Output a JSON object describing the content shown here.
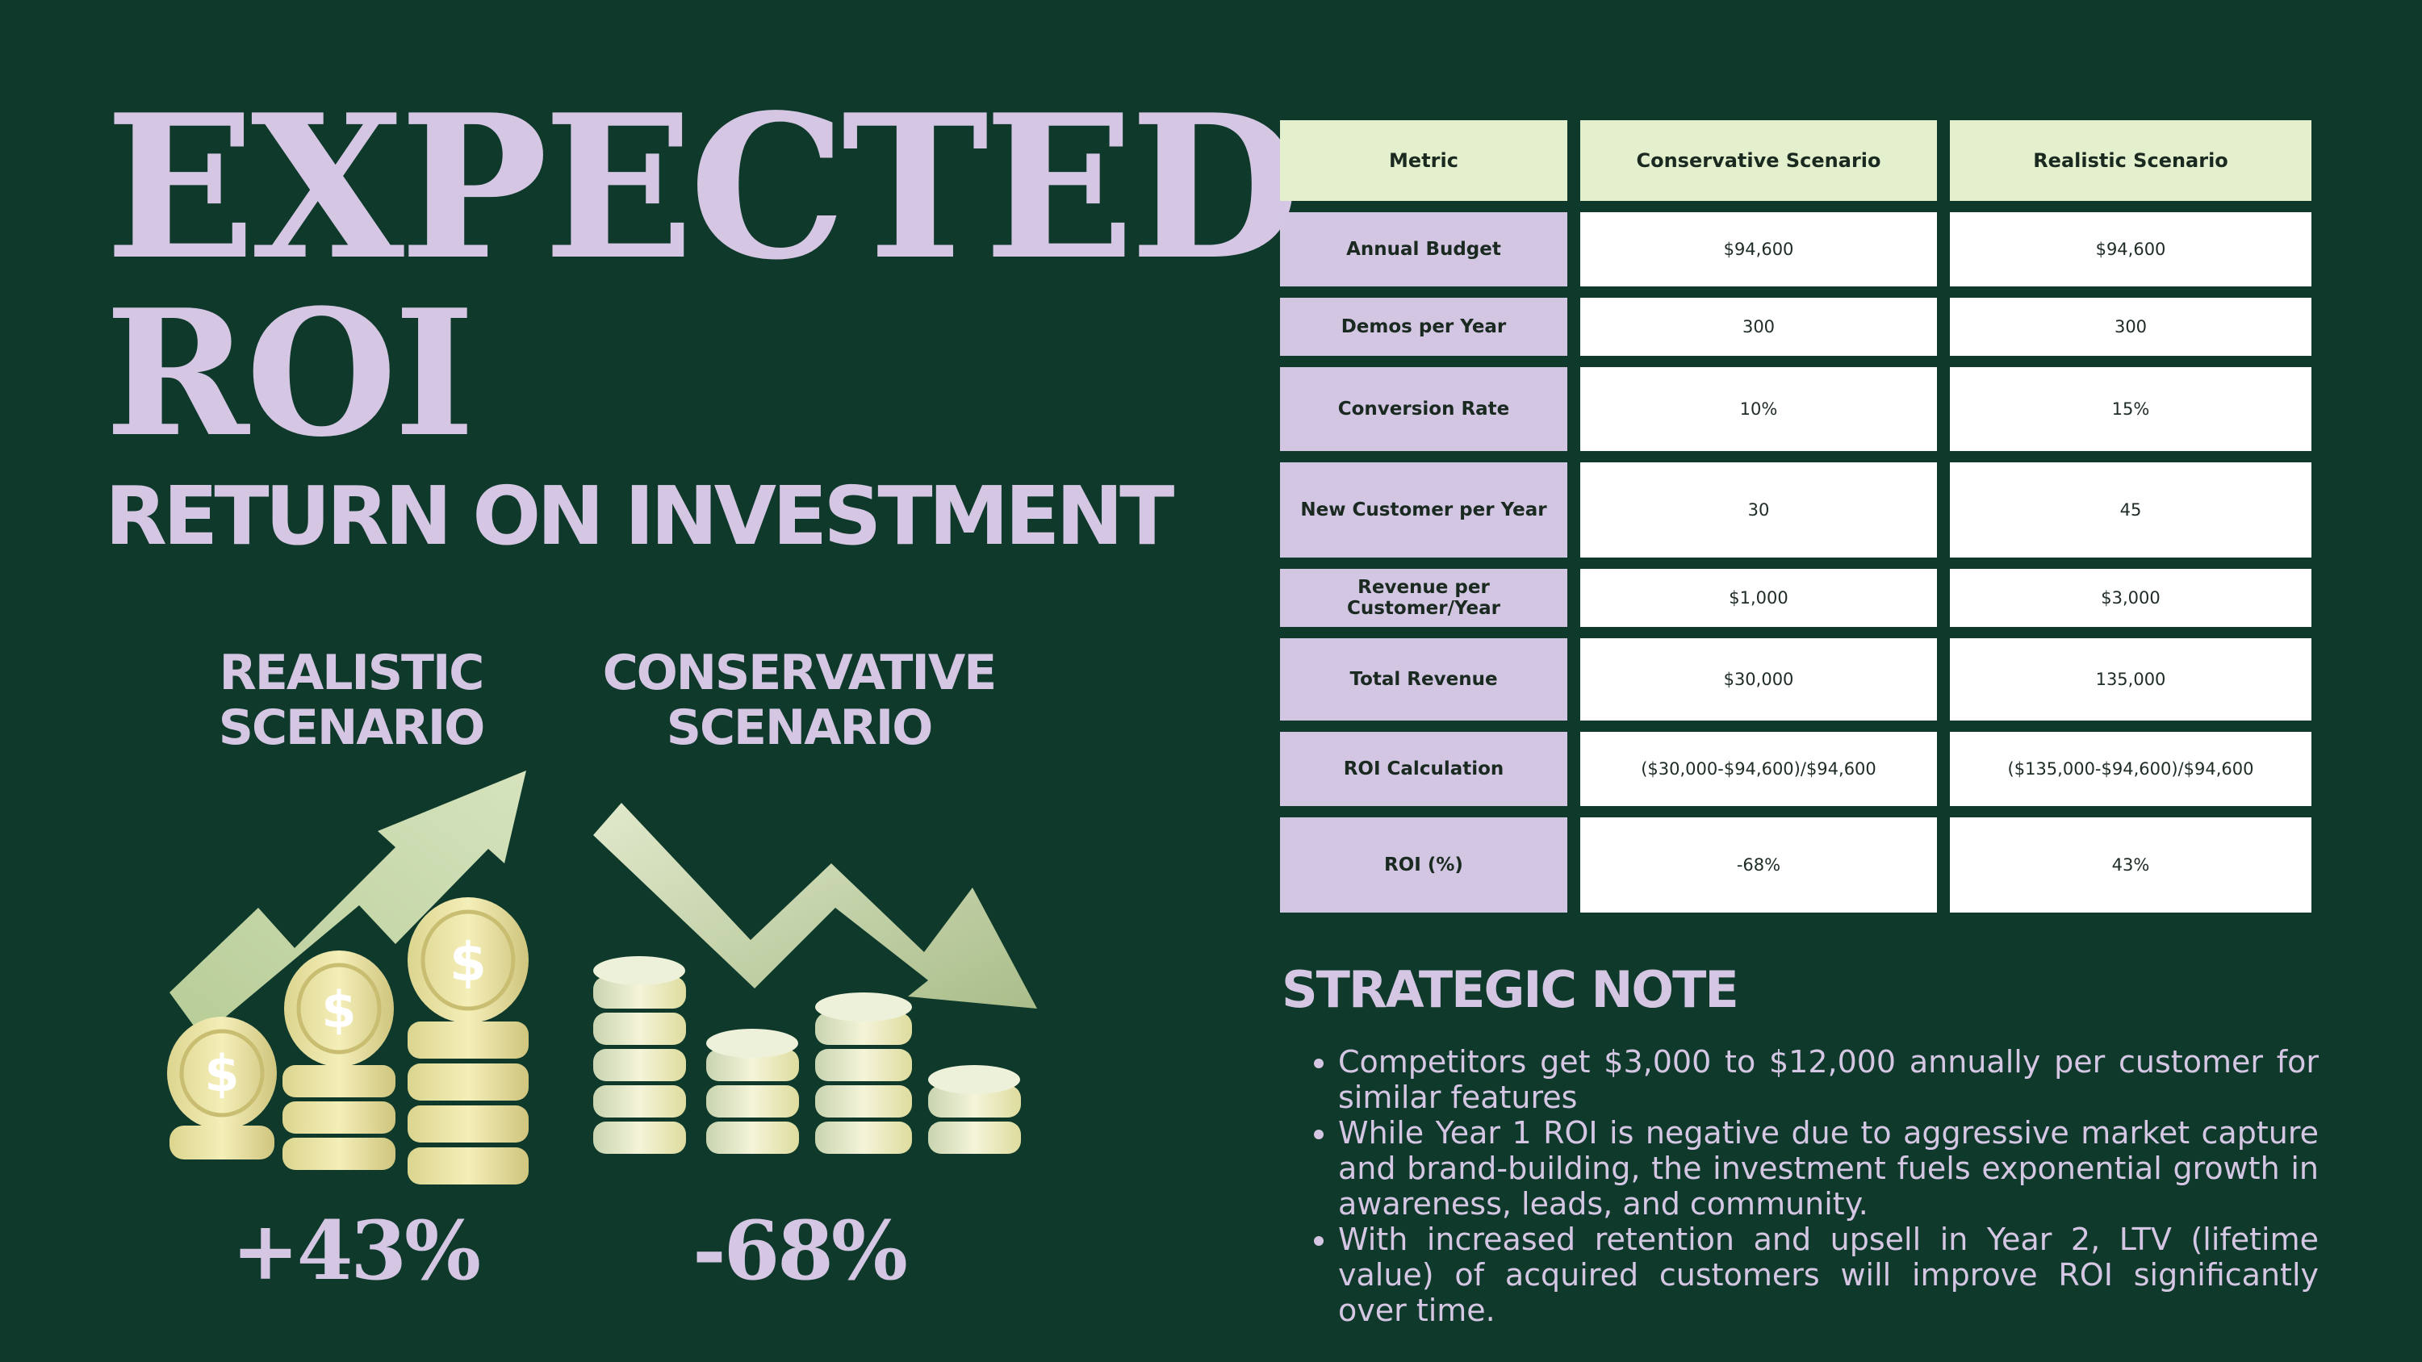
{
  "title": {
    "line1": "EXPECTED",
    "line2": "ROI",
    "line3": "RETURN ON INVESTMENT"
  },
  "scenarios": {
    "realistic": {
      "label_line1": "REALISTIC",
      "label_line2": "SCENARIO",
      "roi": "+43%"
    },
    "conservative": {
      "label_line1": "CONSERVATIVE",
      "label_line2": "SCENARIO",
      "roi": "-68%"
    }
  },
  "icons": {
    "realistic_illustration": "rising-coins-arrow-icon",
    "conservative_illustration": "falling-coins-arrow-icon"
  },
  "colors": {
    "background": "#0f3a2b",
    "title": "#d5c6e4",
    "header_cell": "#e4f0cd",
    "metric_cell": "#d3c6e3",
    "value_cell": "#ffffff",
    "coin": "#efe7a8",
    "arrow": "#c4d6a6"
  },
  "table": {
    "headers": [
      "Metric",
      "Conservative Scenario",
      "Realistic Scenario"
    ],
    "rows": [
      [
        "Annual Budget",
        "$94,600",
        "$94,600"
      ],
      [
        "Demos per Year",
        "300",
        "300"
      ],
      [
        "Conversion Rate",
        "10%",
        "15%"
      ],
      [
        "New Customer per Year",
        "30",
        "45"
      ],
      [
        "Revenue per Customer/Year",
        "$1,000",
        "$3,000"
      ],
      [
        "Total Revenue",
        "$30,000",
        "135,000"
      ],
      [
        "ROI Calculation",
        "($30,000-$94,600)/$94,600",
        "($135,000-$94,600)/$94,600"
      ],
      [
        "ROI (%)",
        "-68%",
        "43%"
      ]
    ]
  },
  "strategic_note": {
    "title": "STRATEGIC NOTE",
    "bullets": [
      "Competitors get $3,000 to $12,000 annually per customer for similar features",
      "While Year 1 ROI is negative due to aggressive market capture and brand-building, the investment fuels exponential growth in awareness, leads, and community.",
      "With increased retention and upsell in Year 2, LTV (lifetime value) of acquired customers will improve ROI significantly over time."
    ]
  }
}
